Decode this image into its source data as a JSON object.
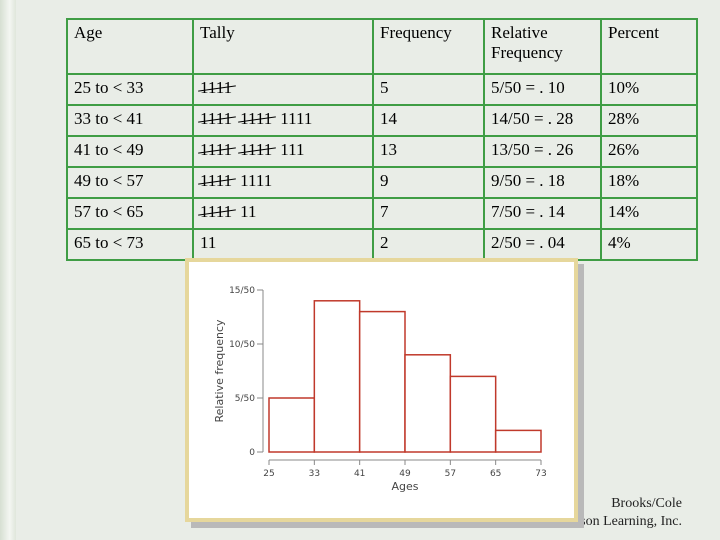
{
  "table": {
    "header": [
      "Age",
      "Tally",
      "Frequency",
      "Relative Frequency",
      "Percent"
    ],
    "rows": [
      {
        "age": "25 to < 33",
        "tally": [
          {
            "text": "1111",
            "crossed": true
          }
        ],
        "frequency": 5,
        "relative": "5/50 = . 10",
        "percent": "10%"
      },
      {
        "age": "33 to < 41",
        "tally": [
          {
            "text": "1111",
            "crossed": true
          },
          {
            "text": "1111",
            "crossed": true
          },
          {
            "text": "1111",
            "crossed": false
          }
        ],
        "frequency": 14,
        "relative": "14/50 = . 28",
        "percent": "28%"
      },
      {
        "age": "41 to < 49",
        "tally": [
          {
            "text": "1111",
            "crossed": true
          },
          {
            "text": "1111",
            "crossed": true
          },
          {
            "text": "111",
            "crossed": false
          }
        ],
        "frequency": 13,
        "relative": "13/50 = . 26",
        "percent": "26%"
      },
      {
        "age": "49 to < 57",
        "tally": [
          {
            "text": "1111",
            "crossed": true
          },
          {
            "text": "1111",
            "crossed": false
          }
        ],
        "frequency": 9,
        "relative": "9/50 = . 18",
        "percent": "18%"
      },
      {
        "age": "57 to < 65",
        "tally": [
          {
            "text": "1111",
            "crossed": true
          },
          {
            "text": "11",
            "crossed": false
          }
        ],
        "frequency": 7,
        "relative": "7/50 = . 14",
        "percent": "14%"
      },
      {
        "age": "65 to < 73",
        "tally": [
          {
            "text": "11",
            "crossed": false
          }
        ],
        "frequency": 2,
        "relative": "2/50 = . 04",
        "percent": "4%"
      }
    ]
  },
  "chart_data": {
    "type": "histogram",
    "bins": [
      25,
      33,
      41,
      49,
      57,
      65,
      73
    ],
    "values": [
      0.1,
      0.28,
      0.26,
      0.18,
      0.14,
      0.04
    ],
    "color": "#c0392b",
    "xlim": [
      25,
      73
    ],
    "xticks": [
      25,
      33,
      41,
      49,
      57,
      65,
      73
    ],
    "ylim": [
      0,
      0.3
    ],
    "yticks": [
      0,
      {
        "value": 0.1,
        "label": "5/50"
      },
      {
        "value": 0.2,
        "label": "10/50"
      },
      {
        "value": 0.3,
        "label": "15/50"
      }
    ],
    "xlabel": "Ages",
    "ylabel": "Relative frequency"
  },
  "footer": {
    "line1": "Brooks/Cole",
    "line2": "A division of Thomson Learning, Inc."
  }
}
